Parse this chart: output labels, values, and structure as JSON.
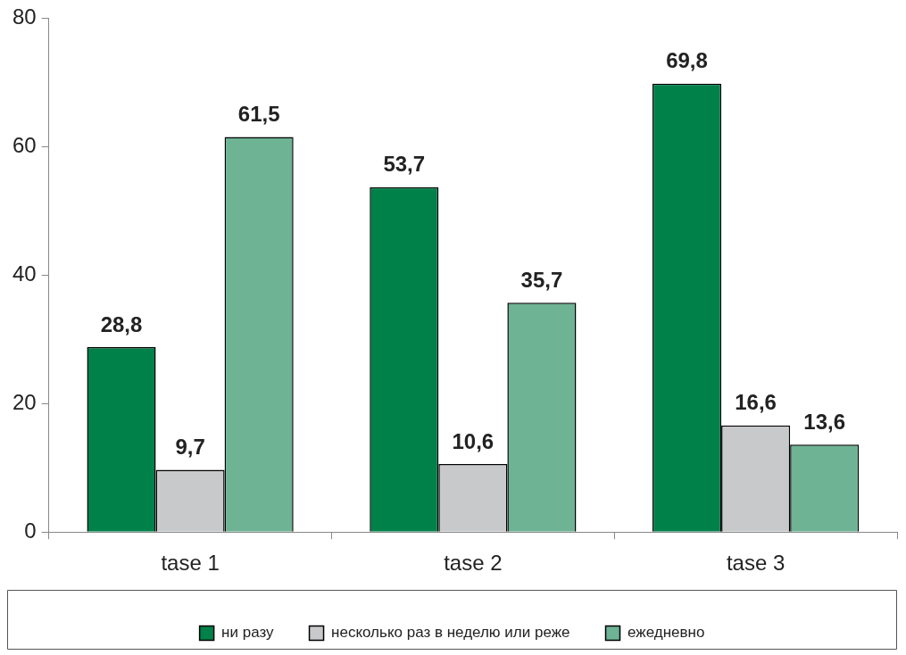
{
  "chart_data": {
    "type": "bar",
    "categories": [
      "tase 1",
      "tase 2",
      "tase 3"
    ],
    "series": [
      {
        "name": "ни разу",
        "color": "#00814a",
        "values": [
          28.8,
          53.7,
          69.8
        ],
        "value_labels": [
          "28,8",
          "53,7",
          "69,8"
        ]
      },
      {
        "name": "несколько раз в неделю или реже",
        "color": "#c8c9cb",
        "values": [
          9.7,
          10.6,
          16.6
        ],
        "value_labels": [
          "9,7",
          "10,6",
          "16,6"
        ]
      },
      {
        "name": "ежедневно",
        "color": "#6db394",
        "values": [
          61.5,
          35.7,
          13.6
        ],
        "value_labels": [
          "61,5",
          "35,7",
          "13,6"
        ]
      }
    ],
    "ylim": [
      0,
      80
    ],
    "yticks": [
      0,
      20,
      40,
      60,
      80
    ],
    "grid": false,
    "legend": "bottom"
  }
}
